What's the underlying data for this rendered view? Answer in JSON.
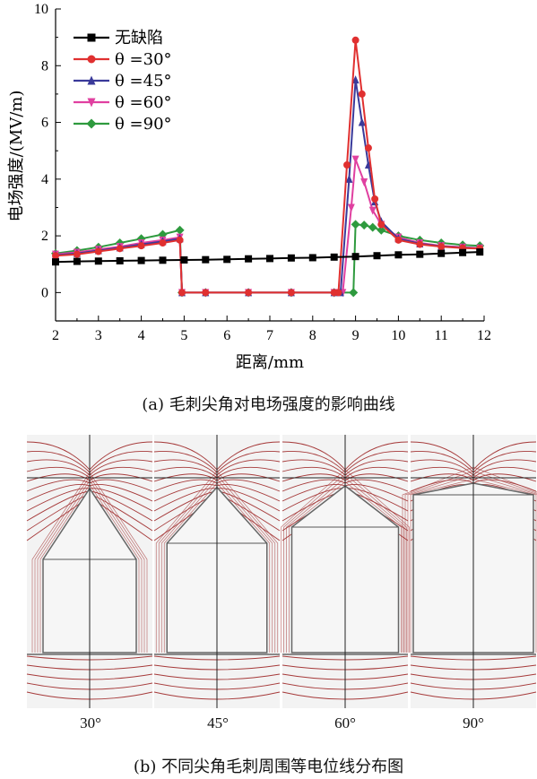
{
  "chart_data": {
    "type": "line",
    "xlabel": "距离/mm",
    "ylabel": "电场强度/(MV/m)",
    "xlim": [
      2,
      12
    ],
    "ylim": [
      -1,
      10
    ],
    "xticks": [
      2,
      3,
      4,
      5,
      6,
      7,
      8,
      9,
      10,
      11,
      12
    ],
    "yticks": [
      0,
      2,
      4,
      6,
      8,
      10
    ],
    "grid": false,
    "legend_position": "top-left",
    "series": [
      {
        "name": "无缺陷",
        "color": "#000000",
        "marker": "square",
        "points": [
          [
            2.0,
            1.08
          ],
          [
            2.5,
            1.1
          ],
          [
            3.0,
            1.11
          ],
          [
            3.5,
            1.12
          ],
          [
            4.0,
            1.13
          ],
          [
            4.5,
            1.14
          ],
          [
            5.0,
            1.15
          ],
          [
            5.5,
            1.16
          ],
          [
            6.0,
            1.17
          ],
          [
            6.5,
            1.19
          ],
          [
            7.0,
            1.2
          ],
          [
            7.5,
            1.22
          ],
          [
            8.0,
            1.23
          ],
          [
            8.5,
            1.25
          ],
          [
            9.0,
            1.27
          ],
          [
            9.5,
            1.3
          ],
          [
            10.0,
            1.33
          ],
          [
            10.5,
            1.35
          ],
          [
            11.0,
            1.38
          ],
          [
            11.5,
            1.41
          ],
          [
            11.9,
            1.43
          ]
        ]
      },
      {
        "name": "θ =30°",
        "color": "#e03030",
        "marker": "circle",
        "points": [
          [
            2.0,
            1.3
          ],
          [
            2.5,
            1.35
          ],
          [
            3.0,
            1.45
          ],
          [
            3.5,
            1.55
          ],
          [
            4.0,
            1.65
          ],
          [
            4.5,
            1.75
          ],
          [
            4.9,
            1.85
          ],
          [
            4.95,
            0.0
          ],
          [
            5.5,
            0.0
          ],
          [
            6.5,
            0.0
          ],
          [
            7.5,
            0.0
          ],
          [
            8.5,
            0.0
          ],
          [
            8.6,
            0.0
          ],
          [
            8.8,
            4.5
          ],
          [
            9.0,
            8.9
          ],
          [
            9.15,
            7.0
          ],
          [
            9.3,
            5.1
          ],
          [
            9.45,
            3.3
          ],
          [
            9.6,
            2.4
          ],
          [
            10.0,
            1.85
          ],
          [
            10.5,
            1.7
          ],
          [
            11.0,
            1.62
          ],
          [
            11.5,
            1.57
          ],
          [
            11.9,
            1.55
          ]
        ]
      },
      {
        "name": "θ =45°",
        "color": "#3a3a9a",
        "marker": "triangle-up",
        "points": [
          [
            2.0,
            1.32
          ],
          [
            2.5,
            1.38
          ],
          [
            3.0,
            1.48
          ],
          [
            3.5,
            1.58
          ],
          [
            4.0,
            1.7
          ],
          [
            4.5,
            1.8
          ],
          [
            4.9,
            1.9
          ],
          [
            4.95,
            0.0
          ],
          [
            5.5,
            0.0
          ],
          [
            6.5,
            0.0
          ],
          [
            7.5,
            0.0
          ],
          [
            8.5,
            0.0
          ],
          [
            8.65,
            0.0
          ],
          [
            8.85,
            4.0
          ],
          [
            9.0,
            7.5
          ],
          [
            9.15,
            6.0
          ],
          [
            9.3,
            4.5
          ],
          [
            9.45,
            3.2
          ],
          [
            9.6,
            2.5
          ],
          [
            10.0,
            1.9
          ],
          [
            10.5,
            1.72
          ],
          [
            11.0,
            1.63
          ],
          [
            11.5,
            1.58
          ],
          [
            11.9,
            1.56
          ]
        ]
      },
      {
        "name": "θ =60°",
        "color": "#e040a0",
        "marker": "triangle-down",
        "points": [
          [
            2.0,
            1.35
          ],
          [
            2.5,
            1.42
          ],
          [
            3.0,
            1.52
          ],
          [
            3.5,
            1.62
          ],
          [
            4.0,
            1.75
          ],
          [
            4.5,
            1.85
          ],
          [
            4.9,
            1.95
          ],
          [
            4.95,
            0.0
          ],
          [
            5.5,
            0.0
          ],
          [
            6.5,
            0.0
          ],
          [
            7.5,
            0.0
          ],
          [
            8.5,
            0.0
          ],
          [
            8.7,
            0.0
          ],
          [
            8.9,
            3.0
          ],
          [
            9.0,
            4.7
          ],
          [
            9.2,
            3.9
          ],
          [
            9.4,
            2.9
          ],
          [
            9.6,
            2.4
          ],
          [
            10.0,
            1.95
          ],
          [
            10.5,
            1.75
          ],
          [
            11.0,
            1.65
          ],
          [
            11.5,
            1.6
          ],
          [
            11.9,
            1.57
          ]
        ]
      },
      {
        "name": "θ =90°",
        "color": "#2e9a3e",
        "marker": "diamond",
        "points": [
          [
            2.0,
            1.38
          ],
          [
            2.5,
            1.48
          ],
          [
            3.0,
            1.6
          ],
          [
            3.5,
            1.75
          ],
          [
            4.0,
            1.9
          ],
          [
            4.5,
            2.05
          ],
          [
            4.9,
            2.2
          ],
          [
            4.95,
            0.0
          ],
          [
            5.5,
            0.0
          ],
          [
            6.5,
            0.0
          ],
          [
            7.5,
            0.0
          ],
          [
            8.5,
            0.0
          ],
          [
            8.95,
            0.0
          ],
          [
            9.0,
            2.4
          ],
          [
            9.2,
            2.38
          ],
          [
            9.4,
            2.3
          ],
          [
            9.6,
            2.2
          ],
          [
            10.0,
            2.0
          ],
          [
            10.5,
            1.85
          ],
          [
            11.0,
            1.75
          ],
          [
            11.5,
            1.68
          ],
          [
            11.9,
            1.65
          ]
        ]
      }
    ]
  },
  "captions": {
    "a": "(a) 毛刺尖角对电场强度的影响曲线",
    "b": "(b) 不同尖角毛刺周围等电位线分布图"
  },
  "panels": [
    {
      "label": "30°",
      "apex_ratio": 0.3
    },
    {
      "label": "45°",
      "apex_ratio": 0.45
    },
    {
      "label": "60°",
      "apex_ratio": 0.6
    },
    {
      "label": "90°",
      "apex_ratio": 0.9
    }
  ],
  "colors": {
    "equipotential": "#a63a3a",
    "panel_bg": "#f3f3f3",
    "shape_fill": "#f6f6f6",
    "shape_stroke": "#666666"
  }
}
